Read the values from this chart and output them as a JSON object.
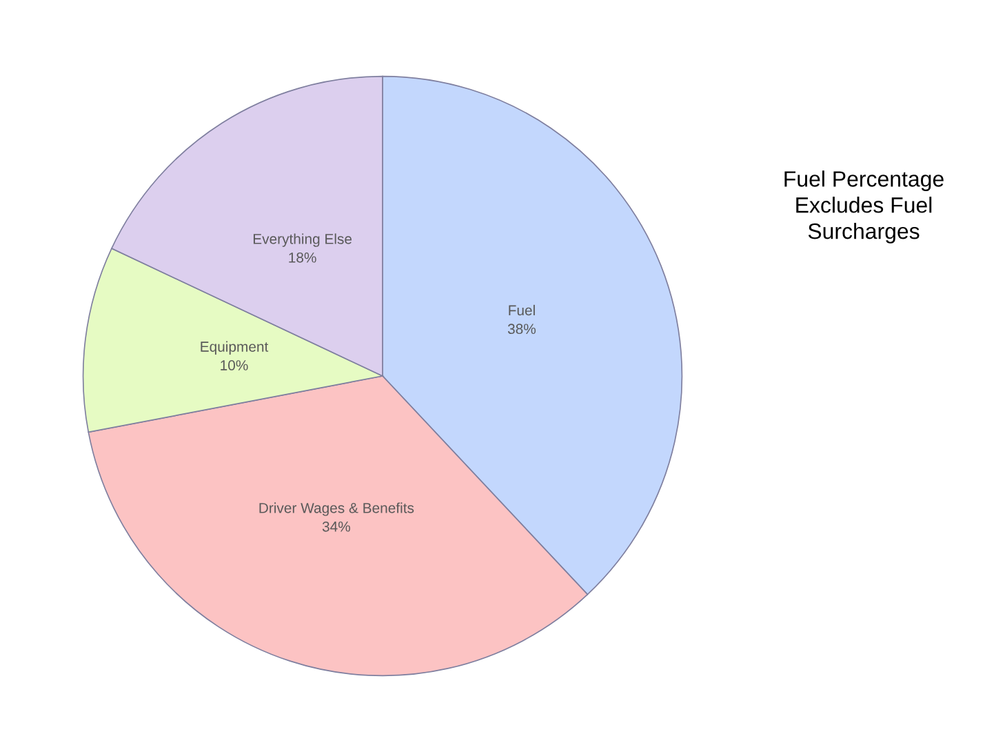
{
  "chart_data": {
    "type": "pie",
    "categories": [
      "Fuel",
      "Driver Wages & Benefits",
      "Equipment",
      "Everything Else"
    ],
    "values": [
      38,
      34,
      10,
      18
    ],
    "value_labels": [
      "38%",
      "34%",
      "10%",
      "18%"
    ],
    "colors": [
      "#c3d7fd",
      "#fcc3c3",
      "#e6fbc3",
      "#dccfee"
    ],
    "legend": false,
    "annotations": [
      "Fuel Percentage\nExcludes Fuel\nSurcharges"
    ]
  }
}
